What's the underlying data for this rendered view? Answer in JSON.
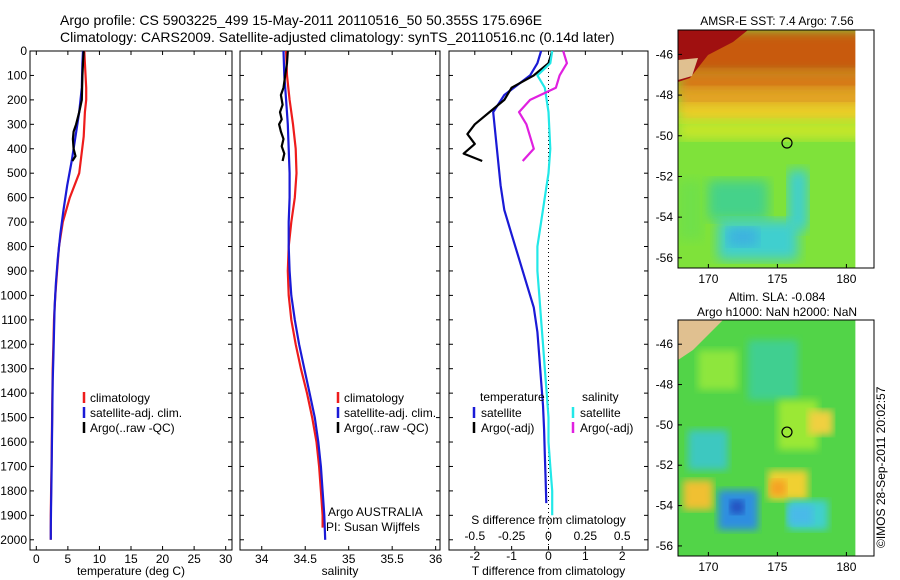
{
  "header": {
    "line1": "Argo profile: CS 5903225_499 15-May-2011 20110516_50 50.355S 175.696E",
    "line2": "Climatology: CARS2009. Satellite-adjusted climatology: synTS_20110516.nc (0.14d later)"
  },
  "stamp": "©IMOS 28-Sep-2011 20:02:57",
  "colors": {
    "climatology": "#ee1c1c",
    "satellite": "#1a1ad6",
    "argo": "#000000",
    "sal_satellite": "#22e8e8",
    "sal_argo": "#e020e0"
  },
  "chart_data": [
    {
      "type": "line",
      "xlabel": "temperature (deg C)",
      "ylabel": "",
      "xlim": [
        -1,
        31
      ],
      "ylim": [
        2100,
        0
      ],
      "y_inverted": true,
      "xticks": [
        "0",
        "5",
        "10",
        "15",
        "20",
        "25",
        "30"
      ],
      "yticks": [
        "0",
        "100",
        "200",
        "300",
        "400",
        "500",
        "600",
        "700",
        "800",
        "900",
        "1000",
        "1100",
        "1200",
        "1300",
        "1400",
        "1500",
        "1600",
        "1700",
        "1800",
        "1900",
        "2000"
      ],
      "legend": [
        "climatology",
        "satellite-adj. clim.",
        "Argo(..raw -QC)"
      ],
      "series": [
        {
          "name": "climatology",
          "color": "#ee1c1c",
          "x": [
            7.6,
            7.7,
            7.9,
            7.9,
            7.7,
            7.5,
            6.8,
            5.3,
            4.2,
            3.6,
            3.3,
            3.0,
            2.8,
            2.7,
            2.6,
            2.55,
            2.5,
            2.45,
            2.4,
            2.35,
            2.3,
            2.3
          ],
          "y": [
            0,
            50,
            150,
            200,
            250,
            350,
            500,
            600,
            700,
            800,
            900,
            1000,
            1100,
            1200,
            1300,
            1400,
            1500,
            1600,
            1700,
            1800,
            1900,
            2000
          ]
        },
        {
          "name": "satellite-adj. clim.",
          "color": "#1a1ad6",
          "x": [
            7.4,
            7.3,
            7.2,
            6.8,
            6.2,
            5.6,
            4.9,
            4.3,
            3.8,
            3.4,
            3.1,
            2.9,
            2.8,
            2.7,
            2.6,
            2.55,
            2.5,
            2.45,
            2.4,
            2.35,
            2.3,
            2.3
          ],
          "y": [
            0,
            50,
            150,
            250,
            350,
            450,
            550,
            650,
            750,
            850,
            950,
            1050,
            1150,
            1250,
            1350,
            1450,
            1550,
            1650,
            1750,
            1850,
            1950,
            2000
          ]
        },
        {
          "name": "Argo(..raw -QC)",
          "color": "#000000",
          "x": [
            7.5,
            7.4,
            7.3,
            7.2,
            6.8,
            6.3,
            5.9,
            5.8,
            5.9,
            6.2,
            5.7
          ],
          "y": [
            0,
            50,
            100,
            200,
            250,
            300,
            330,
            360,
            400,
            430,
            450
          ]
        }
      ]
    },
    {
      "type": "line",
      "xlabel": "salinity",
      "annotations": [
        "Argo AUSTRALIA",
        "PI: Susan Wijffels"
      ],
      "xlim": [
        33.75,
        36.05
      ],
      "ylim": [
        2100,
        0
      ],
      "y_inverted": true,
      "xticks": [
        "34",
        "34.5",
        "35",
        "35.5",
        "36"
      ],
      "legend": [
        "climatology",
        "satellite-adj. clim.",
        "Argo(..raw -QC)"
      ],
      "series": [
        {
          "name": "climatology",
          "color": "#ee1c1c",
          "x": [
            34.28,
            34.29,
            34.32,
            34.36,
            34.39,
            34.4,
            34.38,
            34.34,
            34.31,
            34.3,
            34.31,
            34.34,
            34.39,
            34.45,
            34.52,
            34.58,
            34.63,
            34.66,
            34.68,
            34.7,
            34.7
          ],
          "y": [
            0,
            100,
            200,
            300,
            400,
            500,
            600,
            700,
            800,
            900,
            1000,
            1100,
            1200,
            1300,
            1400,
            1500,
            1600,
            1700,
            1800,
            1900,
            1950
          ]
        },
        {
          "name": "satellite-adj. clim.",
          "color": "#1a1ad6",
          "x": [
            34.25,
            34.26,
            34.28,
            34.3,
            34.31,
            34.32,
            34.32,
            34.31,
            34.31,
            34.32,
            34.34,
            34.38,
            34.43,
            34.49,
            34.55,
            34.61,
            34.65,
            34.68,
            34.7,
            34.72,
            34.73
          ],
          "y": [
            0,
            100,
            200,
            300,
            400,
            500,
            600,
            700,
            800,
            900,
            1000,
            1100,
            1200,
            1300,
            1400,
            1500,
            1600,
            1700,
            1800,
            1900,
            2000
          ]
        },
        {
          "name": "Argo(..raw -QC)",
          "color": "#000000",
          "x": [
            34.3,
            34.29,
            34.27,
            34.25,
            34.22,
            34.24,
            34.21,
            34.23,
            34.2,
            34.22,
            34.25,
            34.23,
            34.26,
            34.24
          ],
          "y": [
            0,
            50,
            100,
            150,
            180,
            220,
            250,
            280,
            300,
            330,
            360,
            390,
            420,
            450
          ]
        }
      ]
    },
    {
      "type": "line",
      "xlabel": "T difference from climatology",
      "xlabel_top": "S difference from climatology",
      "xlim": [
        -2.7,
        2.7
      ],
      "ylim": [
        2100,
        0
      ],
      "y_inverted": true,
      "xticks": [
        "-2",
        "-1",
        "0",
        "1",
        "2"
      ],
      "xticks_top": [
        "-0.5",
        "-0.25",
        "0",
        "0.25",
        "0.5"
      ],
      "legend_groups": [
        {
          "title": "temperature",
          "entries": [
            "satellite",
            "Argo(-adj)"
          ]
        },
        {
          "title": "salinity",
          "entries": [
            "satellite",
            "Argo(-adj)"
          ]
        }
      ],
      "series": [
        {
          "name": "temperature satellite",
          "color": "#1a1ad6",
          "x": [
            -0.2,
            -0.3,
            -0.5,
            -1.2,
            -1.5,
            -1.4,
            -1.3,
            -1.2,
            -1.0,
            -0.8,
            -0.6,
            -0.4,
            -0.3,
            -0.25,
            -0.2,
            -0.15,
            -0.12,
            -0.1,
            -0.08,
            -0.06
          ],
          "y": [
            0,
            50,
            100,
            180,
            250,
            400,
            550,
            650,
            750,
            850,
            950,
            1050,
            1150,
            1250,
            1350,
            1450,
            1550,
            1650,
            1750,
            1850
          ]
        },
        {
          "name": "temperature Argo(-adj)",
          "color": "#000000",
          "x": [
            0.1,
            0.0,
            -0.4,
            -1.0,
            -1.2,
            -1.6,
            -2.0,
            -2.2,
            -2.0,
            -2.3,
            -1.8
          ],
          "y": [
            0,
            50,
            100,
            150,
            200,
            250,
            300,
            340,
            380,
            420,
            450
          ]
        },
        {
          "name": "salinity satellite",
          "color": "#22e8e8",
          "x": [
            0.1,
            0.05,
            -0.3,
            -0.1,
            0.0,
            0.05,
            0.0,
            -0.1,
            -0.2,
            -0.3,
            -0.3,
            -0.25,
            -0.2,
            -0.15,
            -0.1,
            -0.05,
            0.0,
            0.0,
            0.05,
            0.1,
            0.1
          ],
          "y": [
            0,
            50,
            100,
            150,
            250,
            400,
            500,
            600,
            700,
            800,
            900,
            1000,
            1100,
            1200,
            1300,
            1400,
            1500,
            1600,
            1700,
            1800,
            1900
          ]
        },
        {
          "name": "salinity Argo(-adj)",
          "color": "#e020e0",
          "x": [
            0.4,
            0.5,
            0.3,
            0.2,
            -0.5,
            -0.8,
            -0.6,
            -0.4,
            -0.7
          ],
          "y": [
            0,
            50,
            100,
            150,
            200,
            250,
            300,
            400,
            450
          ]
        }
      ]
    },
    {
      "type": "heatmap",
      "title": "AMSR-E SST: 7.4 Argo: 7.56",
      "xticks": [
        "170",
        "175",
        "180"
      ],
      "yticks": [
        "-46",
        "-48",
        "-50",
        "-52",
        "-54",
        "-56"
      ],
      "xlim": [
        167.8,
        182
      ],
      "ylim": [
        -56.5,
        -44.8
      ],
      "marker": {
        "lon": 175.696,
        "lat": -50.355
      }
    },
    {
      "type": "heatmap",
      "title": "Altim. SLA: -0.084",
      "subtitle": "Argo h1000: NaN h2000: NaN",
      "xticks": [
        "170",
        "175",
        "180"
      ],
      "yticks": [
        "-46",
        "-48",
        "-50",
        "-52",
        "-54",
        "-56"
      ],
      "xlim": [
        167.8,
        182
      ],
      "ylim": [
        -56.5,
        -44.8
      ],
      "marker": {
        "lon": 175.696,
        "lat": -50.355
      }
    }
  ]
}
